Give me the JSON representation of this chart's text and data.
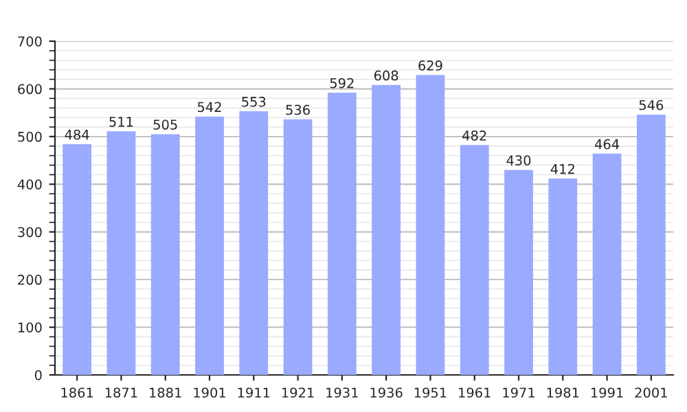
{
  "chart_data": {
    "type": "bar",
    "categories": [
      "1861",
      "1871",
      "1881",
      "1901",
      "1911",
      "1921",
      "1931",
      "1936",
      "1951",
      "1961",
      "1971",
      "1981",
      "1991",
      "2001"
    ],
    "values": [
      484,
      511,
      505,
      542,
      553,
      536,
      592,
      608,
      629,
      482,
      430,
      412,
      464,
      546
    ],
    "color": "#99aaff",
    "ylim": [
      0,
      700
    ],
    "yticks": [
      0,
      100,
      200,
      300,
      400,
      500,
      600,
      700
    ],
    "grid": "y",
    "data_labels": true
  }
}
